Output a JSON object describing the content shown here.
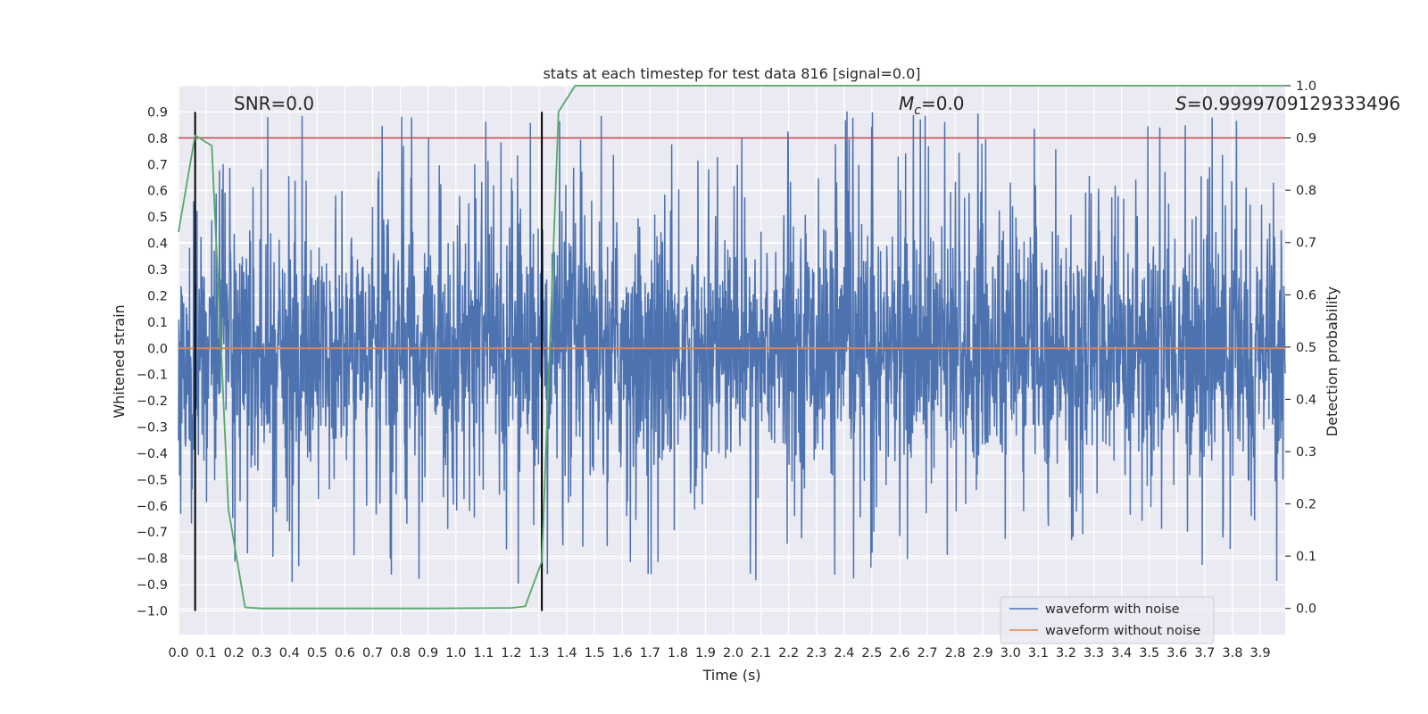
{
  "chart_data": {
    "type": "line",
    "title": "stats at each timestep for test data 816 [signal=0.0]",
    "xlabel": "Time (s)",
    "ylabel": "Whitened strain",
    "y2label": "Detection probability",
    "xlim": [
      0.0,
      3.99
    ],
    "ylim": [
      -1.09,
      1.0
    ],
    "y2lim": [
      -0.05,
      1.0
    ],
    "xticks": [
      "0.0",
      "0.1",
      "0.2",
      "0.3",
      "0.4",
      "0.5",
      "0.6",
      "0.7",
      "0.8",
      "0.9",
      "1.0",
      "1.1",
      "1.2",
      "1.3",
      "1.4",
      "1.5",
      "1.6",
      "1.7",
      "1.8",
      "1.9",
      "2.0",
      "2.1",
      "2.2",
      "2.3",
      "2.4",
      "2.5",
      "2.6",
      "2.7",
      "2.8",
      "2.9",
      "3.0",
      "3.1",
      "3.2",
      "3.3",
      "3.4",
      "3.5",
      "3.6",
      "3.7",
      "3.8",
      "3.9"
    ],
    "yticks": [
      "0.9",
      "0.8",
      "0.7",
      "0.6",
      "0.5",
      "0.4",
      "0.3",
      "0.2",
      "0.1",
      "0.0",
      "−0.1",
      "−0.2",
      "−0.3",
      "−0.4",
      "−0.5",
      "−0.6",
      "−0.7",
      "−0.8",
      "−0.9",
      "−1.0"
    ],
    "y2ticks": [
      "1.0",
      "0.9",
      "0.8",
      "0.7",
      "0.6",
      "0.5",
      "0.4",
      "0.3",
      "0.2",
      "0.1",
      "0.0"
    ],
    "grid": true,
    "legend_position": "lower-right",
    "annotations": {
      "snr": "SNR=0.0",
      "mc": "M",
      "mc_sub": "c",
      "mc_value": "=0.0",
      "s_sym": "S",
      "s_value": "=0.9999709129333496"
    },
    "series": [
      {
        "name": "waveform with noise",
        "color": "#4c72b0",
        "description": "noise-dominated whitened strain sampled across 0–4 s, amplitude mostly within ±0.6 with spikes to about ±0.9",
        "sample_rate": 4096,
        "peak_amplitude_range": [
          -1.0,
          0.9
        ]
      },
      {
        "name": "waveform without noise",
        "color": "#dd8452",
        "x": [
          0.0,
          3.99
        ],
        "y": [
          0.0,
          0.0
        ]
      },
      {
        "color": "#55a868",
        "axis": "right",
        "x": [
          0.0,
          0.06,
          0.12,
          0.18,
          0.24,
          0.3,
          0.6,
          0.9,
          1.2,
          1.25,
          1.31,
          1.37,
          1.43,
          3.99
        ],
        "y": [
          0.72,
          0.905,
          0.885,
          0.19,
          0.002,
          0.0,
          0.0,
          0.0,
          0.001,
          0.004,
          0.09,
          0.95,
          1.0,
          1.0
        ]
      }
    ],
    "hlines": [
      {
        "axis": "right",
        "y": 0.9,
        "color": "#c44e52"
      }
    ],
    "vlines": [
      {
        "x": 0.06,
        "color": "#000000",
        "y_range": [
          -1.0,
          0.9
        ]
      },
      {
        "x": 1.31,
        "color": "#000000",
        "y_range": [
          -1.0,
          0.9
        ]
      }
    ]
  }
}
